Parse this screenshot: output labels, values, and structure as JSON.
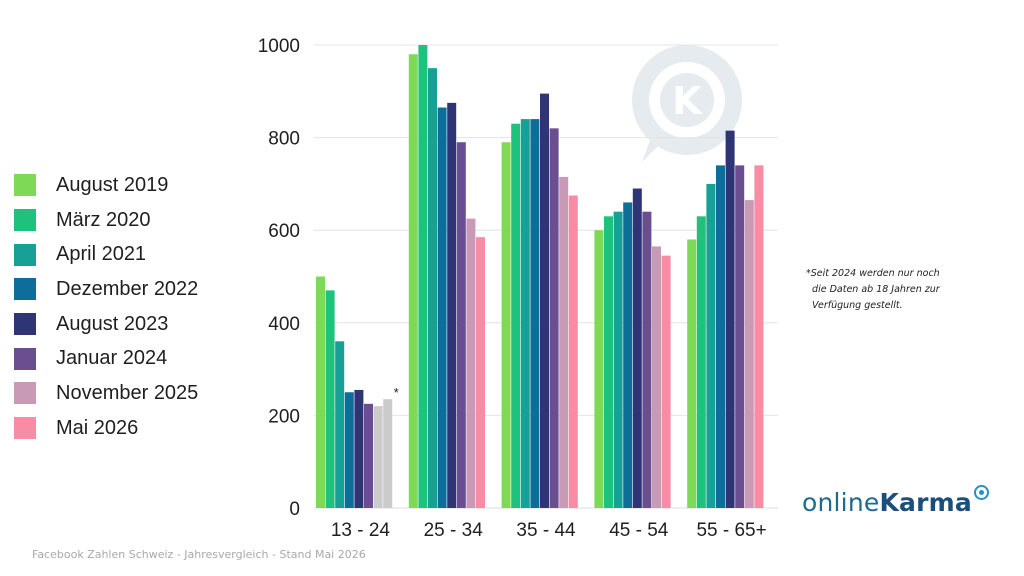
{
  "chart_data": {
    "type": "bar",
    "title": "",
    "xlabel": "",
    "ylabel": "",
    "ylim": [
      0,
      1000
    ],
    "yticks": [
      0,
      200,
      400,
      600,
      800,
      1000
    ],
    "grid": true,
    "legend_position": "left",
    "categories": [
      "13 - 24",
      "25 - 34",
      "35 - 44",
      "45 - 54",
      "55 - 65+"
    ],
    "series": [
      {
        "name": "August 2019",
        "color": "#7ed957",
        "values": [
          500,
          980,
          790,
          600,
          580
        ]
      },
      {
        "name": "März 2020",
        "color": "#1ec27c",
        "values": [
          470,
          1000,
          830,
          630,
          630
        ]
      },
      {
        "name": "April 2021",
        "color": "#16a096",
        "values": [
          360,
          950,
          840,
          640,
          700
        ]
      },
      {
        "name": "Dezember 2022",
        "color": "#0d6f99",
        "values": [
          250,
          865,
          840,
          660,
          740
        ]
      },
      {
        "name": "August 2023",
        "color": "#2f3474",
        "values": [
          255,
          875,
          895,
          690,
          815
        ]
      },
      {
        "name": "Januar 2024",
        "color": "#6b4e8f",
        "values": [
          225,
          790,
          820,
          640,
          740
        ]
      },
      {
        "name": "November 2025",
        "color": "#c99ab5",
        "values": [
          220,
          625,
          715,
          565,
          665
        ]
      },
      {
        "name": "Mai 2026",
        "color": "#f88ca4",
        "values": [
          235,
          585,
          675,
          545,
          740
        ]
      }
    ],
    "grey_bar_color": "#cbcbcb",
    "annotation_marker": "*"
  },
  "footnote": {
    "lines": [
      "Seit 2024 werden nur noch",
      "die Daten ab 18 Jahren zur",
      "Verfügung gestellt."
    ],
    "marker": "*"
  },
  "caption": "Facebook Zahlen Schweiz - Jahresvergleich - Stand Mai 2026",
  "logo": {
    "part1": "online",
    "part2": "Karma"
  },
  "watermark_letter": "K"
}
